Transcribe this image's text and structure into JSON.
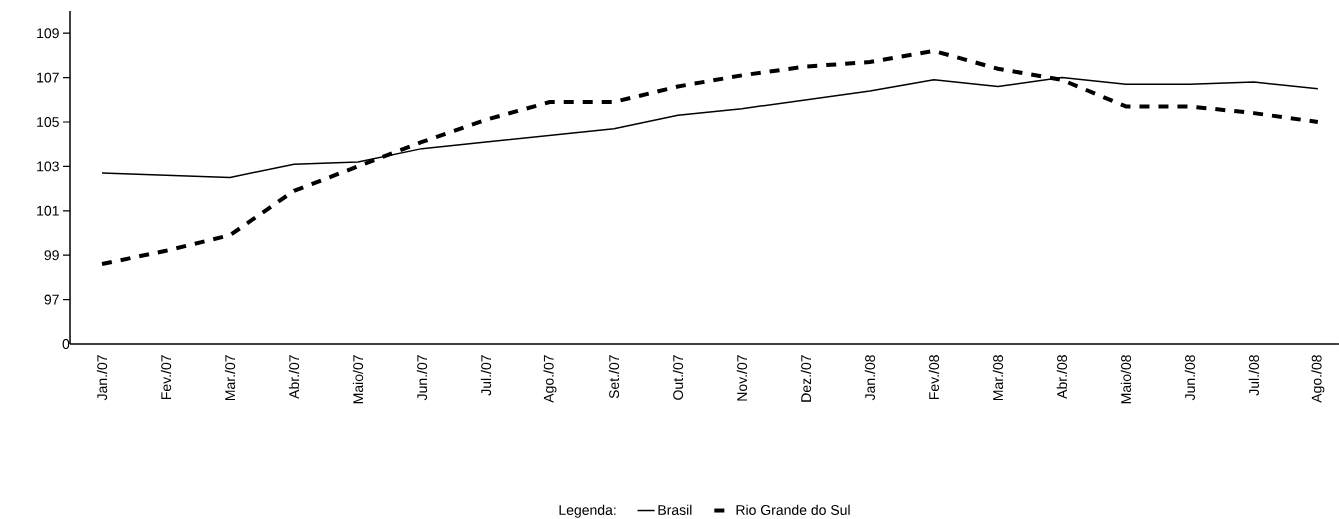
{
  "chart_data": {
    "type": "line",
    "categories": [
      "Jan./07",
      "Fev./07",
      "Mar./07",
      "Abr./07",
      "Maio/07",
      "Jun./07",
      "Jul./07",
      "Ago./07",
      "Set./07",
      "Out./07",
      "Nov./07",
      "Dez./07",
      "Jan./08",
      "Fev./08",
      "Mar./08",
      "Abr./08",
      "Maio/08",
      "Jun./08",
      "Jul./08",
      "Ago./08"
    ],
    "series": [
      {
        "name": "Brasil",
        "color": "#000000",
        "line_style": "solid",
        "values": [
          102.7,
          102.6,
          102.5,
          103.1,
          103.2,
          103.8,
          104.1,
          104.4,
          104.7,
          105.3,
          105.6,
          106.0,
          106.4,
          106.9,
          106.6,
          107.0,
          106.7,
          106.7,
          106.8,
          106.5
        ]
      },
      {
        "name": "Rio Grande do Sul",
        "color": "#000000",
        "line_style": "dashed",
        "values": [
          98.6,
          99.2,
          99.9,
          101.9,
          103.0,
          104.1,
          105.1,
          105.9,
          105.9,
          106.6,
          107.1,
          107.5,
          107.7,
          108.2,
          107.4,
          106.9,
          105.7,
          105.7,
          105.4,
          105.0
        ]
      }
    ],
    "ylim": [
      95,
      110
    ],
    "yticks": [
      97,
      99,
      101,
      103,
      105,
      107,
      109
    ],
    "annotations": [
      "0"
    ],
    "grid": false,
    "legend": "bottom",
    "legend_title": "Legenda:",
    "marker": "none"
  }
}
